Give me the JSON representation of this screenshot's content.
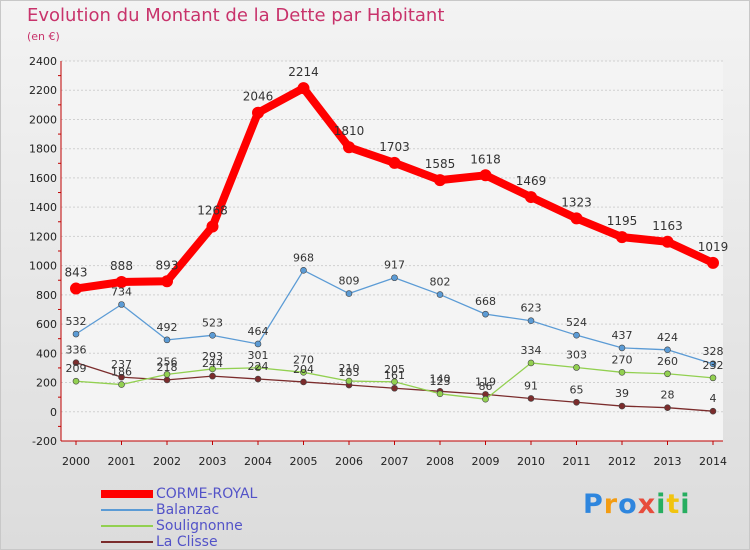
{
  "chart_data": {
    "type": "line",
    "title": "Evolution du Montant de la Dette par Habitant",
    "subtitle": "(en €)",
    "xlabel": "",
    "ylabel": "",
    "x": [
      "2000",
      "2001",
      "2002",
      "2003",
      "2004",
      "2005",
      "2006",
      "2007",
      "2008",
      "2009",
      "2010",
      "2011",
      "2012",
      "2013",
      "2014"
    ],
    "ylim": [
      -200,
      2400
    ],
    "yticks": [
      -200,
      0,
      200,
      400,
      600,
      800,
      1000,
      1200,
      1400,
      1600,
      1800,
      2000,
      2200,
      2400
    ],
    "grid": "horizontal",
    "legend_position": "bottom-left",
    "series": [
      {
        "name": "CORME-ROYAL",
        "color": "#ff0000",
        "values": [
          843,
          888,
          893,
          1268,
          2046,
          2214,
          1810,
          1703,
          1585,
          1618,
          1469,
          1323,
          1195,
          1163,
          1019
        ]
      },
      {
        "name": "Balanzac",
        "color": "#5b9bd5",
        "values": [
          532,
          734,
          492,
          523,
          464,
          968,
          809,
          917,
          802,
          668,
          623,
          524,
          437,
          424,
          328
        ]
      },
      {
        "name": "Soulignonne",
        "color": "#92d050",
        "values": [
          209,
          186,
          256,
          293,
          301,
          270,
          210,
          205,
          123,
          86,
          334,
          303,
          270,
          260,
          232
        ]
      },
      {
        "name": "La Clisse",
        "color": "#7b2c2c",
        "values": [
          336,
          237,
          218,
          244,
          224,
          204,
          183,
          161,
          140,
          119,
          91,
          65,
          39,
          28,
          4
        ]
      }
    ]
  },
  "branding": {
    "logo_letters": [
      "P",
      "r",
      "o",
      "x",
      "i",
      "t",
      "i"
    ],
    "logo_colors": [
      "#2e86de",
      "#f39c12",
      "#2e86de",
      "#e74c3c",
      "#27ae60",
      "#f1c40f",
      "#27ae60"
    ]
  }
}
